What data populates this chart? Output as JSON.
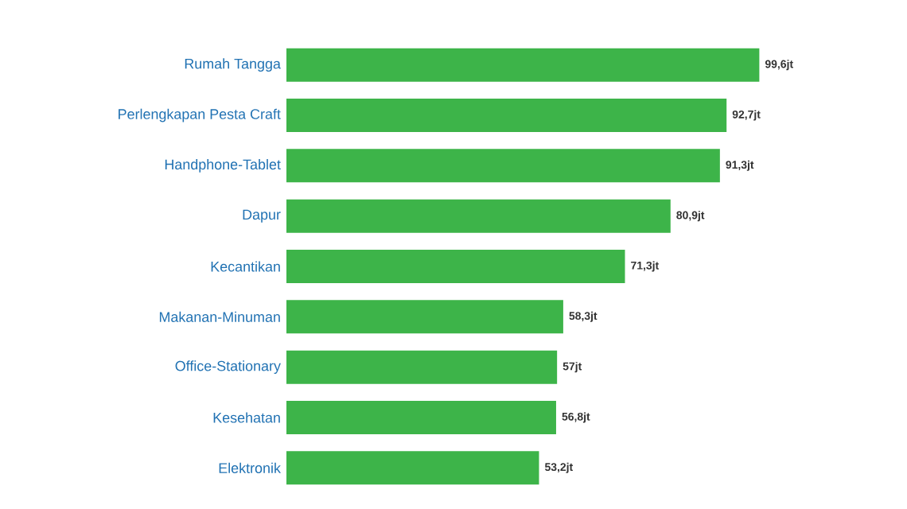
{
  "chart_data": {
    "type": "bar",
    "orientation": "horizontal",
    "categories": [
      "Rumah Tangga",
      "Perlengkapan Pesta Craft",
      "Handphone-Tablet",
      "Dapur",
      "Kecantikan",
      "Makanan-Minuman",
      "Office-Stationary",
      "Kesehatan",
      "Elektronik"
    ],
    "values": [
      99.6,
      92.7,
      91.3,
      80.9,
      71.3,
      58.3,
      57,
      56.8,
      53.2
    ],
    "value_labels": [
      "99,6jt",
      "92,7jt",
      "91,3jt",
      "80,9jt",
      "71,3jt",
      "58,3jt",
      "57jt",
      "56,8jt",
      "53,2jt"
    ],
    "color": "#3db449"
  }
}
